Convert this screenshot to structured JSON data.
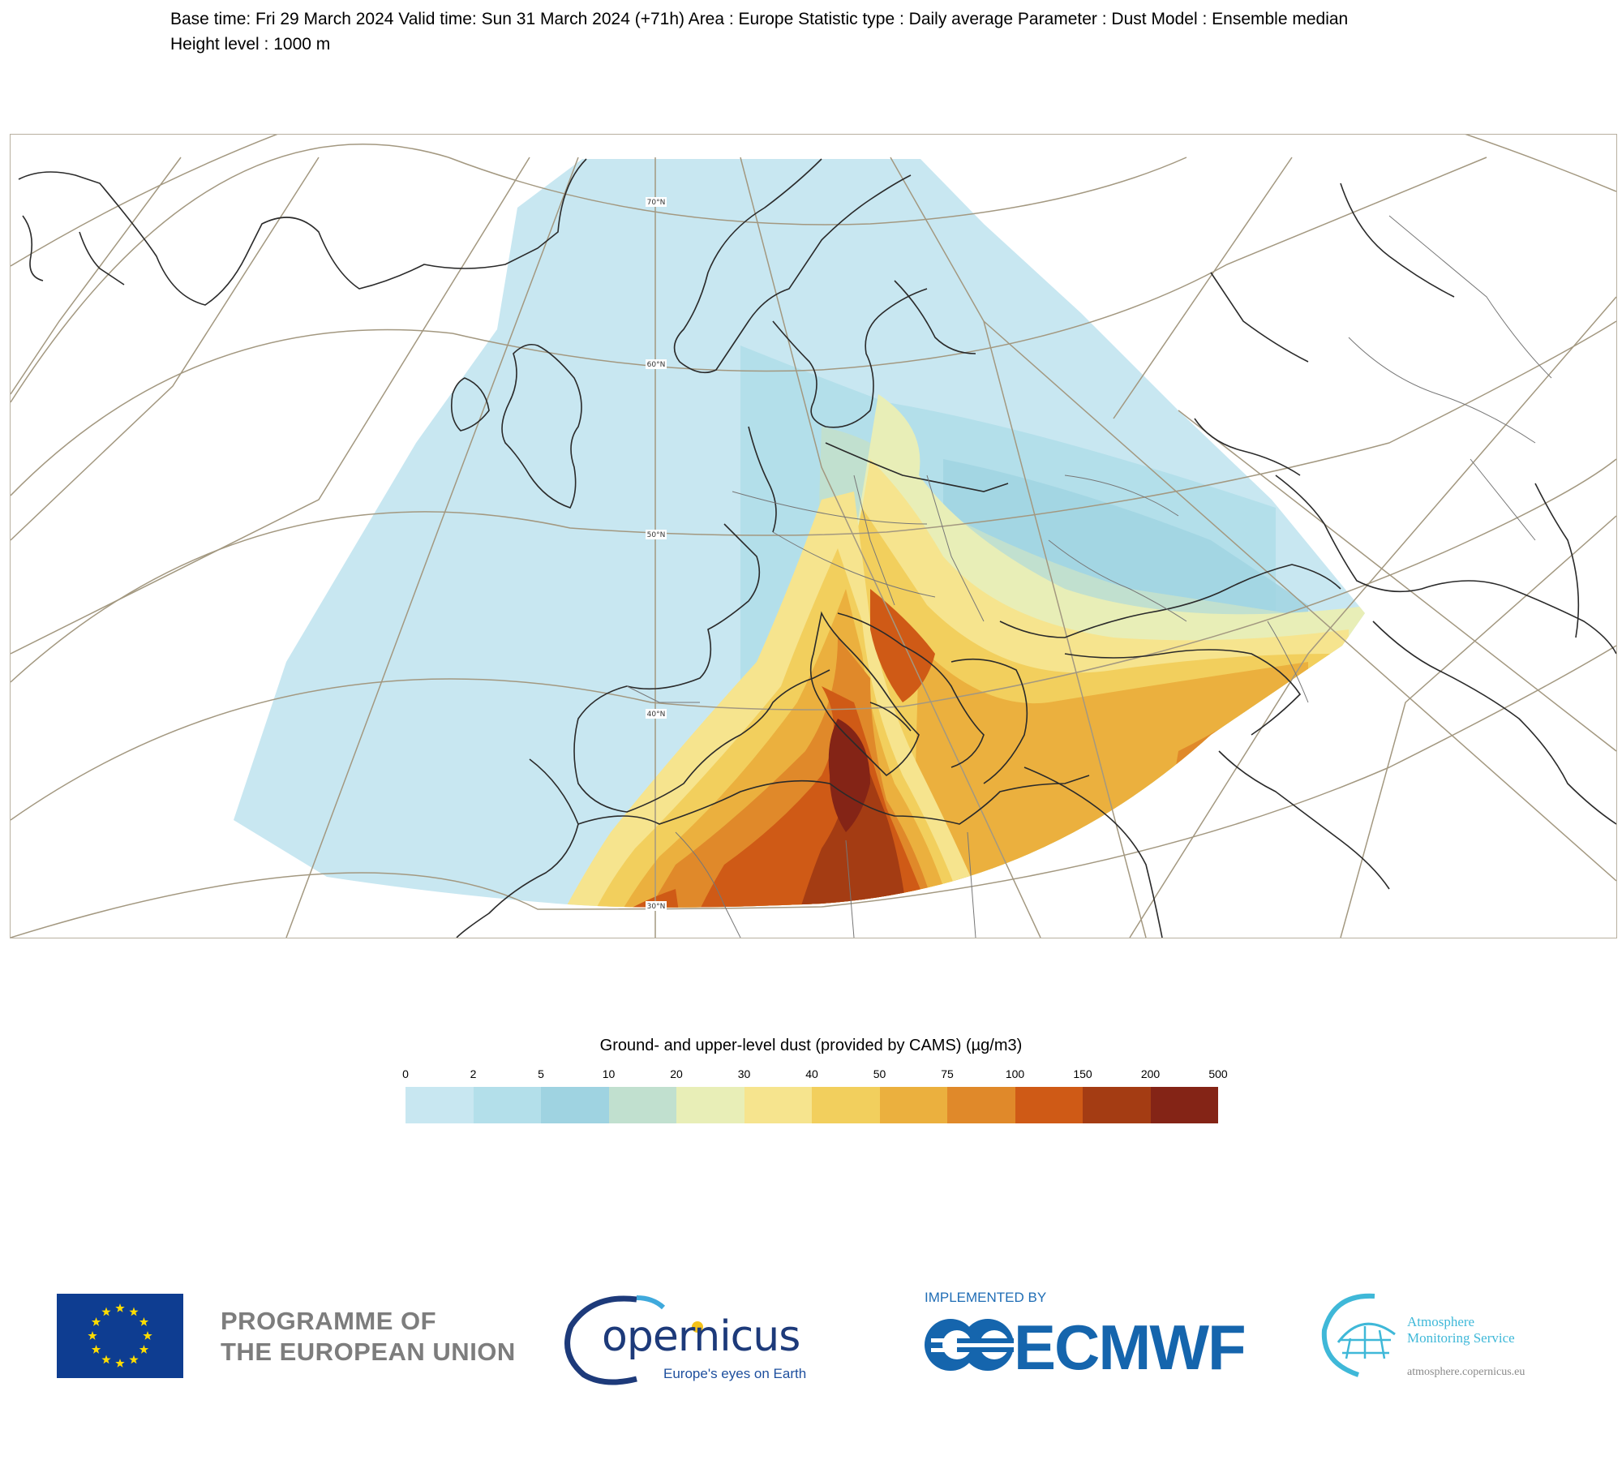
{
  "header": {
    "line1": "Base time: Fri 29 March 2024 Valid time: Sun 31 March 2024 (+71h) Area : Europe Statistic type : Daily average Parameter : Dust Model : Ensemble median",
    "line2": "Height level : 1000 m"
  },
  "map": {
    "graticule_labels": [
      "70°N",
      "60°N",
      "50°N",
      "40°N",
      "30°N"
    ]
  },
  "legend": {
    "title": "Ground- and upper-level dust (provided by CAMS) (µg/m3)",
    "ticks": [
      "0",
      "2",
      "5",
      "10",
      "20",
      "30",
      "40",
      "50",
      "75",
      "100",
      "150",
      "200",
      "500"
    ],
    "colors": [
      "#c8e7f1",
      "#b3dfea",
      "#9fd3e1",
      "#c1e0cf",
      "#e8eeb7",
      "#f6e48e",
      "#f2cf5d",
      "#ebb03e",
      "#e0892a",
      "#cf5a16",
      "#a43c13",
      "#842416"
    ]
  },
  "footer": {
    "eu_line1": "PROGRAMME OF",
    "eu_line2": "THE EUROPEAN UNION",
    "copernicus_word": "opernicus",
    "copernicus_tagline": "Europe's eyes on Earth",
    "implemented_by": "IMPLEMENTED BY",
    "ecmwf": "ECMWF",
    "ams_line1": "Atmosphere",
    "ams_line2": "Monitoring Service",
    "ams_url": "atmosphere.copernicus.eu"
  }
}
